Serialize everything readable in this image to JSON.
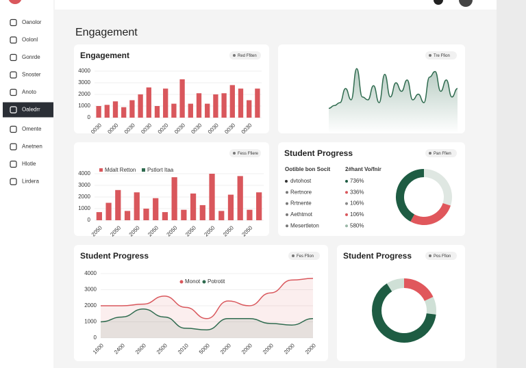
{
  "sidebar": {
    "items": [
      "Oanolor",
      "Oolonl",
      "Gonrde",
      "Snoster",
      "Anoto",
      "Oaledrr",
      "Omente",
      "Anetnen",
      "Hlotle",
      "Lirdera"
    ],
    "active": 5
  },
  "heading": "Engagement",
  "panels": [
    {
      "title": "Engagement",
      "badge": "Red Ffiten",
      "chart_data": {
        "type": "bar",
        "color": "#d9575c",
        "categories": [
          "0030",
          null,
          "0000",
          null,
          "0030",
          null,
          "0030",
          null,
          "0020",
          null,
          "0030",
          null,
          "0030",
          null,
          "0030",
          null,
          "0030",
          null,
          "0030",
          null
        ],
        "values": [
          1000,
          1100,
          1400,
          900,
          1500,
          2000,
          2600,
          1000,
          2500,
          1200,
          3300,
          1200,
          2100,
          1200,
          2000,
          2100,
          2800,
          2500,
          1500,
          2500
        ],
        "ylim": [
          0,
          4000
        ],
        "yticks": [
          0,
          1000,
          2000,
          3000,
          4000
        ]
      }
    },
    {
      "badge": "Tre Ffion",
      "chart_data": {
        "type": "area",
        "color": "#2f6b4f",
        "values": [
          20,
          25,
          30,
          55,
          35,
          90,
          40,
          35,
          60,
          30,
          80,
          40,
          65,
          50,
          70,
          35,
          45,
          30,
          75,
          85,
          50,
          70,
          40,
          55
        ],
        "ylim": [
          0,
          100
        ]
      }
    },
    {
      "badge": "Fess Ffiere",
      "chart_data": {
        "type": "bar",
        "color": "#d9575c",
        "legend": [
          {
            "name": "Mdalt Retton",
            "color": "#d9575c"
          },
          {
            "name": "Pstlort Itaa",
            "color": "#2f6b4f"
          }
        ],
        "categories": [
          "2050",
          null,
          "2050",
          null,
          "2050",
          null,
          "2050",
          null,
          "2050",
          null,
          "2050",
          null,
          "2050",
          null,
          "2050",
          null,
          "2050",
          null
        ],
        "values": [
          700,
          1500,
          2600,
          800,
          2400,
          1000,
          1900,
          700,
          3700,
          900,
          2300,
          1300,
          4000,
          800,
          2200,
          3800,
          900,
          2400
        ],
        "ylim": [
          0,
          4000
        ],
        "yticks": [
          0,
          1000,
          2000,
          3000,
          4000
        ]
      }
    },
    {
      "title": "Student Progress",
      "badge": "Pan Ffien",
      "table": {
        "header": [
          "Ootible bon Socit",
          "2#hant Vo/fnir"
        ],
        "rows": [
          [
            "dvtohost",
            "736%"
          ],
          [
            "Rertnore",
            "336%"
          ],
          [
            "Rrtnente",
            "106%"
          ],
          [
            "Aethtmot",
            "106%"
          ],
          [
            "Mesertleton",
            "580%"
          ]
        ],
        "dot_colors": [
          "#1e5c43",
          "#d9575c",
          "#888888",
          "#d9575c",
          "#9bb8a8"
        ]
      },
      "chart_data": {
        "type": "pie",
        "values": [
          30,
          28,
          42
        ],
        "colors": [
          "#dfe7e2",
          "#e0575c",
          "#1e5c43"
        ]
      }
    },
    {
      "title": "Student Progress",
      "badge": "Fes Ffion",
      "chart_data": {
        "type": "line",
        "categories": [
          "1600",
          "2400",
          "2600",
          "2500",
          "2010",
          "5000",
          "2000",
          "2000",
          "2000",
          "2000",
          "2000"
        ],
        "series": [
          {
            "name": "Monot",
            "color": "#d9575c",
            "values": [
              2000,
              2000,
              2100,
              2600,
              1900,
              1200,
              2300,
              2000,
              2800,
              3600,
              3700
            ]
          },
          {
            "name": "Potrotit",
            "color": "#2f6b4f",
            "values": [
              1000,
              1300,
              1800,
              1300,
              600,
              500,
              1200,
              1200,
              900,
              800,
              1200
            ]
          }
        ],
        "ylim": [
          0,
          4000
        ],
        "yticks": [
          0,
          1000,
          2000,
          3000,
          4000
        ]
      }
    },
    {
      "title": "Student Progress",
      "badge": "Pos Ffion",
      "chart_data": {
        "type": "pie",
        "values": [
          18,
          9,
          64,
          9
        ],
        "colors": [
          "#e0575c",
          "#cfe0d6",
          "#1e5c43",
          "#cfe0d6"
        ]
      }
    }
  ]
}
